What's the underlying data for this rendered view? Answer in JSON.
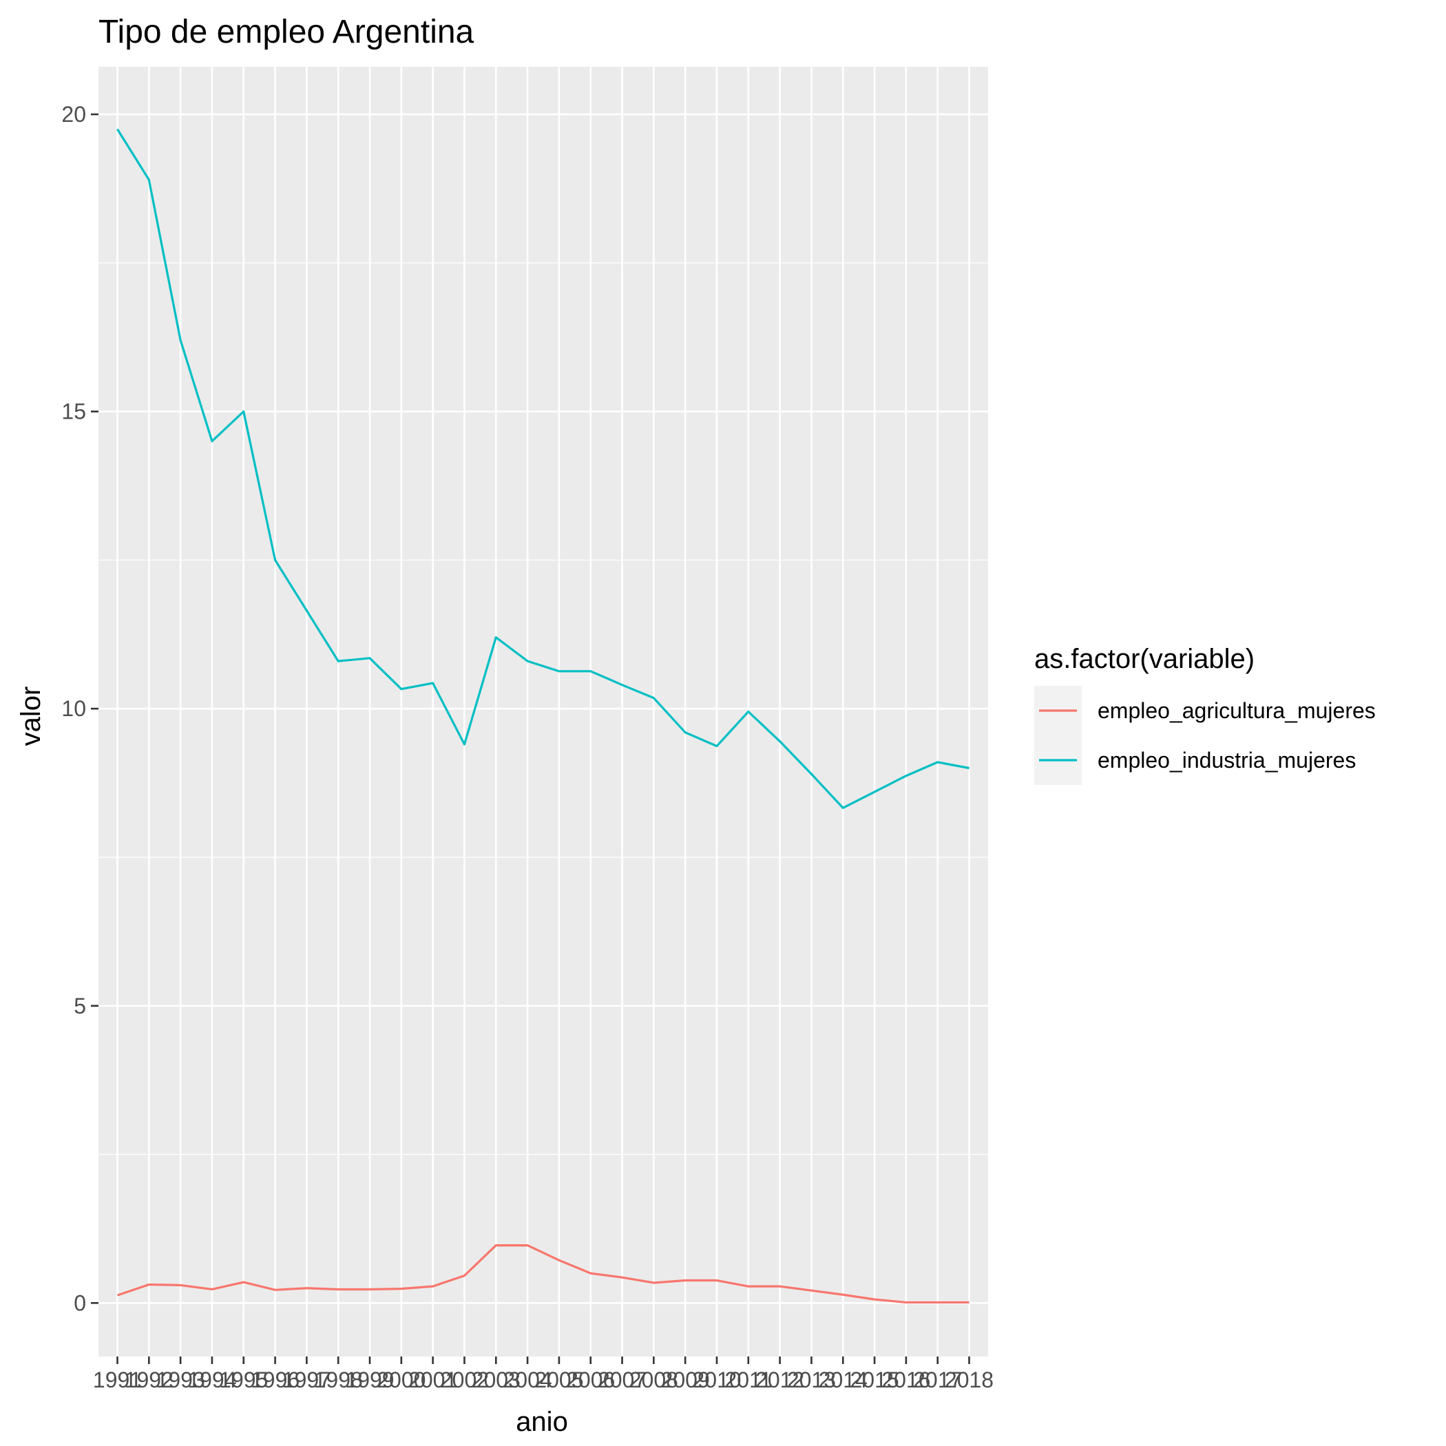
{
  "chart_data": {
    "type": "line",
    "title": "Tipo de empleo Argentina",
    "xlabel": "anio",
    "ylabel": "valor",
    "x": [
      "1991",
      "1992",
      "1993",
      "1994",
      "1995",
      "1996",
      "1997",
      "1998",
      "1999",
      "2000",
      "2001",
      "2002",
      "2003",
      "2004",
      "2005",
      "2006",
      "2007",
      "2008",
      "2009",
      "2010",
      "2011",
      "2012",
      "2013",
      "2014",
      "2015",
      "2016",
      "2017",
      "2018"
    ],
    "ylim": [
      -0.9,
      20.8
    ],
    "yticks": [
      0,
      5,
      10,
      15,
      20
    ],
    "grid": true,
    "legend": {
      "title": "as.factor(variable)",
      "position": "right"
    },
    "series": [
      {
        "name": "empleo_agricultura_mujeres",
        "color": "#F8766D",
        "values": [
          0.13,
          0.31,
          0.3,
          0.23,
          0.35,
          0.22,
          0.25,
          0.23,
          0.23,
          0.24,
          0.28,
          0.46,
          0.97,
          0.97,
          0.72,
          0.5,
          0.43,
          0.34,
          0.38,
          0.38,
          0.28,
          0.28,
          0.21,
          0.14,
          0.06,
          0.01,
          0.01,
          0.01
        ]
      },
      {
        "name": "empleo_industria_mujeres",
        "color": "#00BFC4",
        "values": [
          19.75,
          18.9,
          16.2,
          14.5,
          15.0,
          12.5,
          11.65,
          10.8,
          10.85,
          10.33,
          10.43,
          9.4,
          11.2,
          10.8,
          10.63,
          10.63,
          10.4,
          10.18,
          9.6,
          9.37,
          9.95,
          9.45,
          8.9,
          8.33,
          8.6,
          8.87,
          9.1,
          9.0
        ]
      }
    ]
  }
}
